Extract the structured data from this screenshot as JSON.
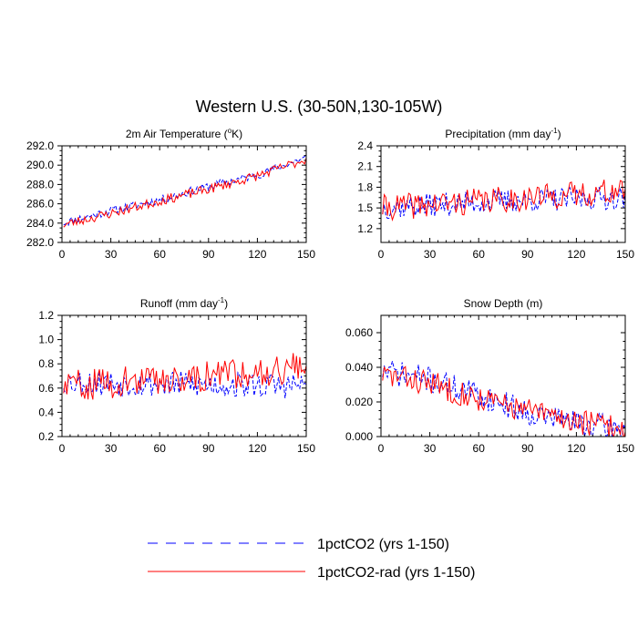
{
  "figure_title": "Western U.S. (30-50N,130-105W)",
  "legend": {
    "entries": [
      {
        "label": "1pctCO2 (yrs 1-150)",
        "color": "#0000ff",
        "dash": true
      },
      {
        "label": "1pctCO2-rad (yrs 1-150)",
        "color": "#ff0000",
        "dash": false
      }
    ]
  },
  "chart_data": [
    {
      "type": "line",
      "title_main": "2m Air Temperature (",
      "title_sup": "o",
      "title_tail": "K)",
      "xlim": [
        0,
        150
      ],
      "ylim": [
        282,
        292
      ],
      "xticks": [
        0,
        30,
        60,
        90,
        120,
        150
      ],
      "xtick_labels": [
        "0",
        "30",
        "60",
        "90",
        "120",
        "150"
      ],
      "yticks": [
        282,
        284,
        286,
        288,
        290,
        292
      ],
      "ytick_labels": [
        "282.0",
        "284.0",
        "286.0",
        "288.0",
        "290.0",
        "292.0"
      ],
      "series": [
        {
          "name": "1pctCO2 (yrs 1-150)",
          "color": "#0000ff",
          "style": "dashed",
          "x_start": 1,
          "x_end": 150,
          "anchors": [
            [
              0,
              284.0
            ],
            [
              30,
              285.3
            ],
            [
              60,
              286.4
            ],
            [
              90,
              287.8
            ],
            [
              120,
              289.0
            ],
            [
              150,
              290.8
            ]
          ],
          "noise": 0.45,
          "seed": 11
        },
        {
          "name": "1pctCO2-rad (yrs 1-150)",
          "color": "#ff0000",
          "style": "solid",
          "x_start": 1,
          "x_end": 150,
          "anchors": [
            [
              0,
              283.8
            ],
            [
              30,
              285.0
            ],
            [
              60,
              286.3
            ],
            [
              90,
              287.5
            ],
            [
              120,
              288.9
            ],
            [
              150,
              290.6
            ]
          ],
          "noise": 0.5,
          "seed": 23
        }
      ]
    },
    {
      "type": "line",
      "title_main": "Precipitation (mm day",
      "title_sup": "-1",
      "title_tail": ")",
      "xlim": [
        0,
        150
      ],
      "ylim": [
        1.0,
        2.4
      ],
      "xticks": [
        0,
        30,
        60,
        90,
        120,
        150
      ],
      "xtick_labels": [
        "0",
        "30",
        "60",
        "90",
        "120",
        "150"
      ],
      "yticks": [
        1.2,
        1.5,
        1.8,
        2.1,
        2.4
      ],
      "ytick_labels": [
        "1.2",
        "1.5",
        "1.8",
        "2.1",
        "2.4"
      ],
      "series": [
        {
          "name": "1pctCO2 (yrs 1-150)",
          "color": "#0000ff",
          "style": "dashed",
          "x_start": 1,
          "x_end": 150,
          "anchors": [
            [
              0,
              1.5
            ],
            [
              75,
              1.6
            ],
            [
              150,
              1.65
            ]
          ],
          "noise": 0.17,
          "seed": 37
        },
        {
          "name": "1pctCO2-rad (yrs 1-150)",
          "color": "#ff0000",
          "style": "solid",
          "x_start": 1,
          "x_end": 150,
          "anchors": [
            [
              0,
              1.5
            ],
            [
              75,
              1.62
            ],
            [
              150,
              1.75
            ]
          ],
          "noise": 0.19,
          "seed": 41
        }
      ]
    },
    {
      "type": "line",
      "title_main": "Runoff (mm day",
      "title_sup": "-1",
      "title_tail": ")",
      "xlim": [
        0,
        150
      ],
      "ylim": [
        0.2,
        1.2
      ],
      "xticks": [
        0,
        30,
        60,
        90,
        120,
        150
      ],
      "xtick_labels": [
        "0",
        "30",
        "60",
        "90",
        "120",
        "150"
      ],
      "yticks": [
        0.2,
        0.4,
        0.6,
        0.8,
        1.0,
        1.2
      ],
      "ytick_labels": [
        "0.2",
        "0.4",
        "0.6",
        "0.8",
        "1.0",
        "1.2"
      ],
      "series": [
        {
          "name": "1pctCO2 (yrs 1-150)",
          "color": "#0000ff",
          "style": "dashed",
          "x_start": 1,
          "x_end": 150,
          "anchors": [
            [
              0,
              0.65
            ],
            [
              75,
              0.63
            ],
            [
              150,
              0.62
            ]
          ],
          "noise": 0.11,
          "seed": 53
        },
        {
          "name": "1pctCO2-rad (yrs 1-150)",
          "color": "#ff0000",
          "style": "solid",
          "x_start": 1,
          "x_end": 150,
          "anchors": [
            [
              0,
              0.62
            ],
            [
              75,
              0.68
            ],
            [
              150,
              0.78
            ]
          ],
          "noise": 0.13,
          "seed": 59
        }
      ]
    },
    {
      "type": "line",
      "title_main": "Snow Depth (m)",
      "title_sup": "",
      "title_tail": "",
      "xlim": [
        0,
        150
      ],
      "ylim": [
        0,
        0.07
      ],
      "xticks": [
        0,
        30,
        60,
        90,
        120,
        150
      ],
      "xtick_labels": [
        "0",
        "30",
        "60",
        "90",
        "120",
        "150"
      ],
      "yticks": [
        0,
        0.02,
        0.04,
        0.06
      ],
      "ytick_labels": [
        "0.000",
        "0.020",
        "0.040",
        "0.060"
      ],
      "series": [
        {
          "name": "1pctCO2 (yrs 1-150)",
          "color": "#0000ff",
          "style": "dashed",
          "x_start": 1,
          "x_end": 150,
          "anchors": [
            [
              0,
              0.038
            ],
            [
              30,
              0.033
            ],
            [
              60,
              0.024
            ],
            [
              90,
              0.014
            ],
            [
              120,
              0.008
            ],
            [
              150,
              0.004
            ]
          ],
          "noise": 0.0075,
          "seed": 71
        },
        {
          "name": "1pctCO2-rad (yrs 1-150)",
          "color": "#ff0000",
          "style": "solid",
          "x_start": 1,
          "x_end": 150,
          "anchors": [
            [
              0,
              0.036
            ],
            [
              30,
              0.031
            ],
            [
              60,
              0.022
            ],
            [
              90,
              0.015
            ],
            [
              120,
              0.009
            ],
            [
              150,
              0.004
            ]
          ],
          "noise": 0.0075,
          "seed": 83
        }
      ]
    }
  ]
}
